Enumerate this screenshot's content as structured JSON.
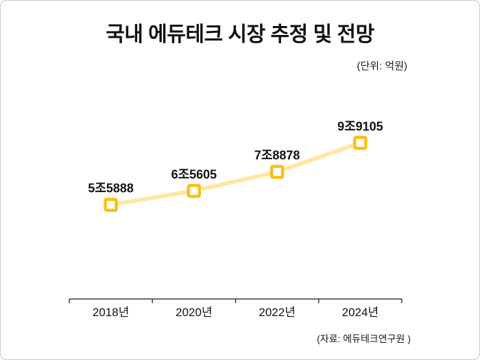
{
  "title": "국내 에듀테크 시장 추정 및 전망",
  "unit_note": "(단위: 억원)",
  "source": "(자료: 에듀테크연구원 )",
  "chart_data": {
    "type": "line",
    "title": "국내 에듀테크 시장 추정 및 전망",
    "unit": "억원",
    "categories": [
      "2018년",
      "2020년",
      "2022년",
      "2024년"
    ],
    "values": [
      55888,
      65605,
      78878,
      99105
    ],
    "value_labels": [
      "5조5888",
      "6조5605",
      "7조8878",
      "9조9105"
    ],
    "xlabel": "",
    "ylabel": "",
    "ylim": [
      50000,
      105000
    ],
    "grid": false,
    "legend": "none",
    "line_color": "#FFE8A0",
    "marker_color": "#F6C117",
    "axis_color": "#3c3c3c",
    "label_color": "#111111"
  }
}
